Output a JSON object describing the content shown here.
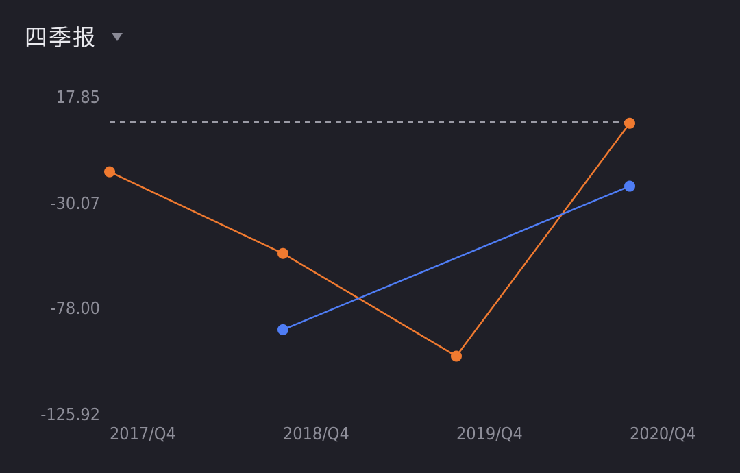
{
  "header": {
    "title": "四季报",
    "dropdown_icon": "caret-down-icon"
  },
  "chart_data": {
    "type": "line",
    "categories": [
      "2017/Q4",
      "2018/Q4",
      "2019/Q4",
      "2020/Q4"
    ],
    "y_ticks": [
      17.85,
      -30.07,
      -78.0,
      -125.92
    ],
    "y_tick_labels": [
      "17.85",
      "-30.07",
      "-78.00",
      "-125.92"
    ],
    "ylim": [
      -125.92,
      17.85
    ],
    "reference_line": {
      "value": 5.5,
      "style": "dashed",
      "color": "#9a9aa5"
    },
    "grid": false,
    "series": [
      {
        "color": "#f07a30",
        "values": [
          -16.5,
          -53.5,
          -100,
          5.5
        ]
      },
      {
        "color": "#4f7df5",
        "values": [
          null,
          -88,
          null,
          -23
        ]
      }
    ]
  },
  "colors": {
    "background": "#1f1f27",
    "text": "#e9e9ee",
    "tick_text": "#8e8e99",
    "orange": "#f07a30",
    "blue": "#4f7df5"
  }
}
